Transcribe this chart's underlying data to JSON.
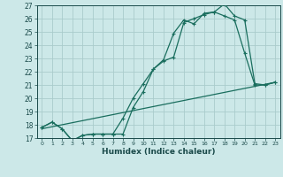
{
  "xlabel": "Humidex (Indice chaleur)",
  "bg_color": "#cce8e8",
  "grid_color": "#aacccc",
  "line_color": "#1a6e5e",
  "xlim": [
    -0.5,
    23.5
  ],
  "ylim": [
    17,
    27
  ],
  "xticks": [
    0,
    1,
    2,
    3,
    4,
    5,
    6,
    7,
    8,
    9,
    10,
    11,
    12,
    13,
    14,
    15,
    16,
    17,
    18,
    19,
    20,
    21,
    22,
    23
  ],
  "yticks": [
    17,
    18,
    19,
    20,
    21,
    22,
    23,
    24,
    25,
    26,
    27
  ],
  "line1_x": [
    0,
    1,
    2,
    3,
    4,
    5,
    6,
    7,
    8,
    9,
    10,
    11,
    12,
    13,
    14,
    15,
    16,
    17,
    18,
    19,
    20,
    21,
    22,
    23
  ],
  "line1_y": [
    17.8,
    18.2,
    17.7,
    16.8,
    17.2,
    17.3,
    17.3,
    17.3,
    17.3,
    19.3,
    20.5,
    22.2,
    22.9,
    24.9,
    25.9,
    25.6,
    26.4,
    26.5,
    27.1,
    26.2,
    25.9,
    21.1,
    21.0,
    21.2
  ],
  "line2_x": [
    0,
    1,
    2,
    3,
    4,
    5,
    6,
    7,
    8,
    9,
    10,
    11,
    12,
    13,
    14,
    15,
    16,
    17,
    18,
    19,
    20,
    21,
    22,
    23
  ],
  "line2_y": [
    17.8,
    18.2,
    17.7,
    16.8,
    17.2,
    17.3,
    17.3,
    17.3,
    18.5,
    20.0,
    21.1,
    22.2,
    22.8,
    23.1,
    25.7,
    26.0,
    26.3,
    26.5,
    26.2,
    25.9,
    23.4,
    21.0,
    21.0,
    21.2
  ],
  "line3_x": [
    0,
    23
  ],
  "line3_y": [
    17.7,
    21.2
  ]
}
